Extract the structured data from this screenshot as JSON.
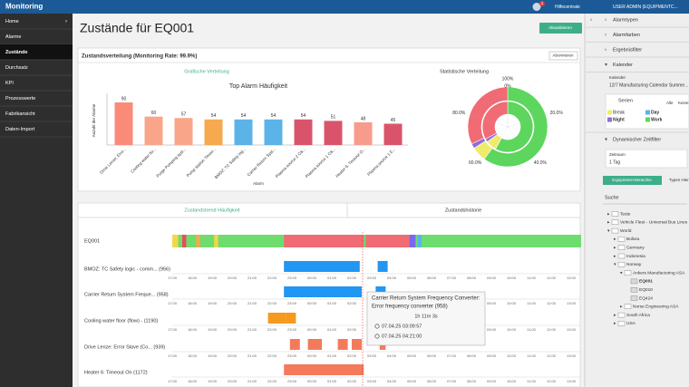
{
  "header": {
    "app_title": "Monitoring",
    "badge": "1",
    "help": "Hilfecentrale",
    "user": "USER ADMIN (EQUIPMENTC..."
  },
  "nav": [
    "Home",
    "Alarme",
    "Zustände",
    "Durchsatz",
    "KPI",
    "Prozesswerte",
    "Fabrikansicht",
    "Daten-Import"
  ],
  "page": {
    "title": "Zustände für EQ001",
    "refresh": "Aktualisieren"
  },
  "distribution": {
    "title": "Zustandsverteilung (Monitoring Rate: 99.9%)",
    "subscribe": "Abonnieren",
    "graphic_tab": "Grafische Verteilung",
    "stat_tab": "Statistische Verteilung"
  },
  "bar_chart": {
    "type": "bar",
    "title": "Top Alarm Häufigkeit",
    "y_label": "Anzahl der Alarme",
    "x_label": "Alarm",
    "categories": [
      "Drive Lenze: Erro...",
      "Cooling water flo...",
      "Purge Pumping syst...",
      "Pump station Timeo...",
      "BMOZ: TC Safety log...",
      "Carrier Return Syst...",
      "Plasma source 2 C&...",
      "Plasma source 1 C&...",
      "Heater 6: Timeout O...",
      "Plasma source 1 E..."
    ],
    "values": [
      90,
      60,
      57,
      54,
      54,
      54,
      54,
      51,
      48,
      45
    ],
    "colors": [
      "#fa8b78",
      "#f9a58a",
      "#f9a58a",
      "#f6a94e",
      "#5cb3e8",
      "#5cb3e8",
      "#d9546b",
      "#d9546b",
      "#f79c8c",
      "#d9546b"
    ]
  },
  "donut": {
    "type": "pie",
    "colors": [
      "#5cd65c",
      "#f0ec6a",
      "#8a6fe0",
      "#f06b73"
    ],
    "outer_values": [
      60,
      6,
      2,
      32
    ],
    "inner_values": [
      58,
      7,
      2,
      33
    ],
    "ticks": [
      {
        "value": 0,
        "label": "0%"
      },
      {
        "value": 20,
        "label": "20.0%"
      },
      {
        "value": 40,
        "label": "40.0%"
      },
      {
        "value": 60,
        "label": "60.0%"
      },
      {
        "value": 80,
        "label": "80.0%"
      },
      {
        "value": 100,
        "label": "100%"
      }
    ]
  },
  "timeline": {
    "tabs": [
      "Zustandstrend Häufigkeit",
      "Zustandshistorie"
    ],
    "rows": [
      "EQ001",
      "BMOZ: TC Safety logic - comm... (956)",
      "Carrier Return System Freque... (958)",
      "Cooling water floor (flow) - (1190)",
      "Drive Lenze: Error Slave (Co... (939)",
      "Heater 6: Timeout On (1172)"
    ],
    "ticks": [
      "17:00",
      "18:00",
      "19:00",
      "20:00",
      "21:00",
      "22:00",
      "23:00",
      "00:00",
      "01:00",
      "02:00",
      "03:00",
      "04:00",
      "05:00",
      "06:00",
      "07:00",
      "08:00",
      "09:00",
      "10:00",
      "11:00",
      "12:00",
      "13:00"
    ],
    "tooltip": {
      "title_1": "Carrier Return System Frequency Converter:",
      "title_2": "Error frequency converter (958)",
      "duration": "1h 11m 3s",
      "start": "07.04.25 03:09:57",
      "end": "07.04.25 04:21:00"
    }
  },
  "sidebar_right": {
    "sections": [
      "Alarmtypen",
      "Alarmfarben",
      "Ergebnisfilter",
      "Kalender"
    ],
    "calendar_label": "Kalender",
    "calendar_value": "12/7 Manufacturing Calendar Summe...",
    "series_title": "Serien",
    "all": "Alle",
    "none": "Keine",
    "series": [
      "Break",
      "Day",
      "Night",
      "Work"
    ],
    "dyn_filter": "Dynamischer Zeitfilter",
    "period_label": "Zeitraum",
    "period_value": "1 Tag",
    "tabs": [
      "Equipment-Hierarchie",
      "Typen Hier..."
    ],
    "search": "Suche",
    "tree": [
      "Tests",
      "Vehicle Fleet - Universal Bus Lines",
      "World",
      "Bolivia",
      "Germany",
      "Indonesia",
      "Norway",
      "Ankers Manufacturing ASA",
      "EQ001",
      "EQ010",
      "EQ424",
      "Norse Engineering ASA",
      "South Africa",
      "USA"
    ]
  }
}
